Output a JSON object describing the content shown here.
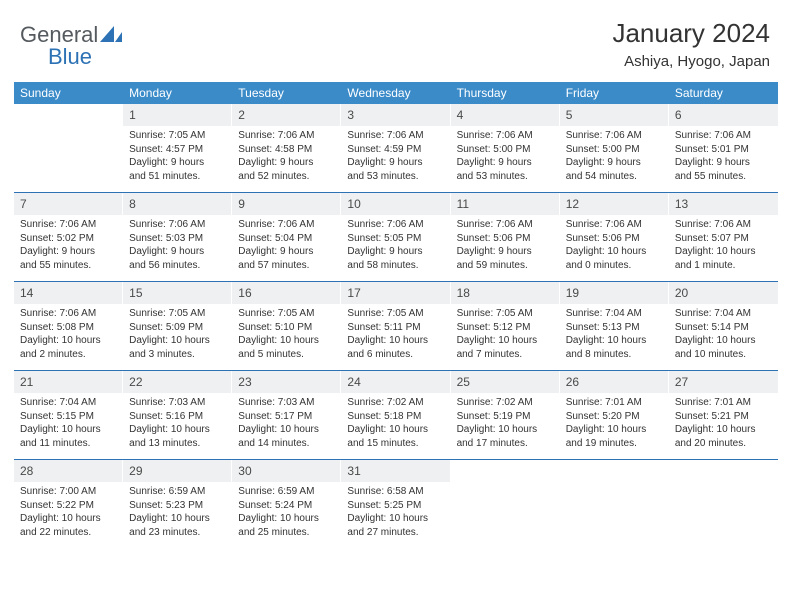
{
  "logo": {
    "text1": "General",
    "text2": "Blue",
    "brand_color": "#2d72b5"
  },
  "header": {
    "title": "January 2024",
    "location": "Ashiya, Hyogo, Japan"
  },
  "styling": {
    "header_band_color": "#3b8bc9",
    "week_divider_color": "#2d72b5",
    "daynum_bg": "#eef0f1",
    "text_color": "#333333",
    "weekday_font_size": 12,
    "daynum_font_size": 12,
    "cell_font_size": 10,
    "title_font_size": 26,
    "location_font_size": 15
  },
  "weekdays": [
    "Sunday",
    "Monday",
    "Tuesday",
    "Wednesday",
    "Thursday",
    "Friday",
    "Saturday"
  ],
  "weeks": [
    [
      {
        "n": "",
        "sr": "",
        "ss": "",
        "d1": "",
        "d2": ""
      },
      {
        "n": "1",
        "sr": "Sunrise: 7:05 AM",
        "ss": "Sunset: 4:57 PM",
        "d1": "Daylight: 9 hours",
        "d2": "and 51 minutes."
      },
      {
        "n": "2",
        "sr": "Sunrise: 7:06 AM",
        "ss": "Sunset: 4:58 PM",
        "d1": "Daylight: 9 hours",
        "d2": "and 52 minutes."
      },
      {
        "n": "3",
        "sr": "Sunrise: 7:06 AM",
        "ss": "Sunset: 4:59 PM",
        "d1": "Daylight: 9 hours",
        "d2": "and 53 minutes."
      },
      {
        "n": "4",
        "sr": "Sunrise: 7:06 AM",
        "ss": "Sunset: 5:00 PM",
        "d1": "Daylight: 9 hours",
        "d2": "and 53 minutes."
      },
      {
        "n": "5",
        "sr": "Sunrise: 7:06 AM",
        "ss": "Sunset: 5:00 PM",
        "d1": "Daylight: 9 hours",
        "d2": "and 54 minutes."
      },
      {
        "n": "6",
        "sr": "Sunrise: 7:06 AM",
        "ss": "Sunset: 5:01 PM",
        "d1": "Daylight: 9 hours",
        "d2": "and 55 minutes."
      }
    ],
    [
      {
        "n": "7",
        "sr": "Sunrise: 7:06 AM",
        "ss": "Sunset: 5:02 PM",
        "d1": "Daylight: 9 hours",
        "d2": "and 55 minutes."
      },
      {
        "n": "8",
        "sr": "Sunrise: 7:06 AM",
        "ss": "Sunset: 5:03 PM",
        "d1": "Daylight: 9 hours",
        "d2": "and 56 minutes."
      },
      {
        "n": "9",
        "sr": "Sunrise: 7:06 AM",
        "ss": "Sunset: 5:04 PM",
        "d1": "Daylight: 9 hours",
        "d2": "and 57 minutes."
      },
      {
        "n": "10",
        "sr": "Sunrise: 7:06 AM",
        "ss": "Sunset: 5:05 PM",
        "d1": "Daylight: 9 hours",
        "d2": "and 58 minutes."
      },
      {
        "n": "11",
        "sr": "Sunrise: 7:06 AM",
        "ss": "Sunset: 5:06 PM",
        "d1": "Daylight: 9 hours",
        "d2": "and 59 minutes."
      },
      {
        "n": "12",
        "sr": "Sunrise: 7:06 AM",
        "ss": "Sunset: 5:06 PM",
        "d1": "Daylight: 10 hours",
        "d2": "and 0 minutes."
      },
      {
        "n": "13",
        "sr": "Sunrise: 7:06 AM",
        "ss": "Sunset: 5:07 PM",
        "d1": "Daylight: 10 hours",
        "d2": "and 1 minute."
      }
    ],
    [
      {
        "n": "14",
        "sr": "Sunrise: 7:06 AM",
        "ss": "Sunset: 5:08 PM",
        "d1": "Daylight: 10 hours",
        "d2": "and 2 minutes."
      },
      {
        "n": "15",
        "sr": "Sunrise: 7:05 AM",
        "ss": "Sunset: 5:09 PM",
        "d1": "Daylight: 10 hours",
        "d2": "and 3 minutes."
      },
      {
        "n": "16",
        "sr": "Sunrise: 7:05 AM",
        "ss": "Sunset: 5:10 PM",
        "d1": "Daylight: 10 hours",
        "d2": "and 5 minutes."
      },
      {
        "n": "17",
        "sr": "Sunrise: 7:05 AM",
        "ss": "Sunset: 5:11 PM",
        "d1": "Daylight: 10 hours",
        "d2": "and 6 minutes."
      },
      {
        "n": "18",
        "sr": "Sunrise: 7:05 AM",
        "ss": "Sunset: 5:12 PM",
        "d1": "Daylight: 10 hours",
        "d2": "and 7 minutes."
      },
      {
        "n": "19",
        "sr": "Sunrise: 7:04 AM",
        "ss": "Sunset: 5:13 PM",
        "d1": "Daylight: 10 hours",
        "d2": "and 8 minutes."
      },
      {
        "n": "20",
        "sr": "Sunrise: 7:04 AM",
        "ss": "Sunset: 5:14 PM",
        "d1": "Daylight: 10 hours",
        "d2": "and 10 minutes."
      }
    ],
    [
      {
        "n": "21",
        "sr": "Sunrise: 7:04 AM",
        "ss": "Sunset: 5:15 PM",
        "d1": "Daylight: 10 hours",
        "d2": "and 11 minutes."
      },
      {
        "n": "22",
        "sr": "Sunrise: 7:03 AM",
        "ss": "Sunset: 5:16 PM",
        "d1": "Daylight: 10 hours",
        "d2": "and 13 minutes."
      },
      {
        "n": "23",
        "sr": "Sunrise: 7:03 AM",
        "ss": "Sunset: 5:17 PM",
        "d1": "Daylight: 10 hours",
        "d2": "and 14 minutes."
      },
      {
        "n": "24",
        "sr": "Sunrise: 7:02 AM",
        "ss": "Sunset: 5:18 PM",
        "d1": "Daylight: 10 hours",
        "d2": "and 15 minutes."
      },
      {
        "n": "25",
        "sr": "Sunrise: 7:02 AM",
        "ss": "Sunset: 5:19 PM",
        "d1": "Daylight: 10 hours",
        "d2": "and 17 minutes."
      },
      {
        "n": "26",
        "sr": "Sunrise: 7:01 AM",
        "ss": "Sunset: 5:20 PM",
        "d1": "Daylight: 10 hours",
        "d2": "and 19 minutes."
      },
      {
        "n": "27",
        "sr": "Sunrise: 7:01 AM",
        "ss": "Sunset: 5:21 PM",
        "d1": "Daylight: 10 hours",
        "d2": "and 20 minutes."
      }
    ],
    [
      {
        "n": "28",
        "sr": "Sunrise: 7:00 AM",
        "ss": "Sunset: 5:22 PM",
        "d1": "Daylight: 10 hours",
        "d2": "and 22 minutes."
      },
      {
        "n": "29",
        "sr": "Sunrise: 6:59 AM",
        "ss": "Sunset: 5:23 PM",
        "d1": "Daylight: 10 hours",
        "d2": "and 23 minutes."
      },
      {
        "n": "30",
        "sr": "Sunrise: 6:59 AM",
        "ss": "Sunset: 5:24 PM",
        "d1": "Daylight: 10 hours",
        "d2": "and 25 minutes."
      },
      {
        "n": "31",
        "sr": "Sunrise: 6:58 AM",
        "ss": "Sunset: 5:25 PM",
        "d1": "Daylight: 10 hours",
        "d2": "and 27 minutes."
      },
      {
        "n": "",
        "sr": "",
        "ss": "",
        "d1": "",
        "d2": ""
      },
      {
        "n": "",
        "sr": "",
        "ss": "",
        "d1": "",
        "d2": ""
      },
      {
        "n": "",
        "sr": "",
        "ss": "",
        "d1": "",
        "d2": ""
      }
    ]
  ]
}
